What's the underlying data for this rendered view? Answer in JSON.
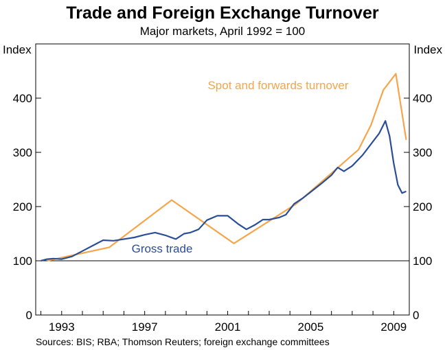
{
  "chart_data": {
    "type": "line",
    "title": "Trade and Foreign Exchange Turnover",
    "subtitle": "Major markets, April 1992 = 100",
    "ylabel_left": "Index",
    "ylabel_right": "Index",
    "ylim": [
      0,
      500
    ],
    "yticks": [
      0,
      100,
      200,
      300,
      400
    ],
    "xlim": [
      1991.75,
      2009.75
    ],
    "xticks": [
      1993,
      1997,
      2001,
      2005,
      2009
    ],
    "source": "Sources: BIS; RBA; Thomson Reuters; foreign exchange committees",
    "reference_line": 100,
    "colors": {
      "spot": "#f5a54a",
      "gross": "#2a4e96",
      "axis": "#000000"
    },
    "series": [
      {
        "name": "Spot and forwards turnover",
        "label": "Spot and forwards turnover",
        "x": [
          1992.3,
          1995.3,
          1998.3,
          2001.3,
          2004.3,
          2007.3,
          2007.9,
          2008.5,
          2009.1,
          2009.6
        ],
        "y": [
          100,
          125,
          212,
          132,
          205,
          305,
          350,
          415,
          445,
          323
        ]
      },
      {
        "name": "Gross trade",
        "label": "Gross trade",
        "x": [
          1992.0,
          1992.3,
          1992.6,
          1993.0,
          1993.5,
          1994.0,
          1994.5,
          1995.0,
          1995.5,
          1996.0,
          1996.5,
          1997.0,
          1997.5,
          1998.0,
          1998.5,
          1998.9,
          1999.2,
          1999.6,
          2000.0,
          2000.5,
          2001.0,
          2001.5,
          2001.9,
          2002.3,
          2002.7,
          2003.0,
          2003.5,
          2003.8,
          2004.2,
          2004.6,
          2005.0,
          2005.5,
          2006.0,
          2006.3,
          2006.6,
          2007.0,
          2007.5,
          2008.0,
          2008.3,
          2008.6,
          2008.8,
          2009.0,
          2009.2,
          2009.4,
          2009.6
        ],
        "y": [
          100,
          103,
          104,
          103,
          108,
          118,
          128,
          138,
          137,
          140,
          143,
          148,
          152,
          147,
          140,
          150,
          152,
          158,
          175,
          183,
          183,
          168,
          158,
          166,
          176,
          176,
          180,
          185,
          205,
          215,
          227,
          242,
          258,
          272,
          265,
          275,
          295,
          320,
          335,
          358,
          330,
          280,
          240,
          225,
          228
        ]
      }
    ]
  }
}
